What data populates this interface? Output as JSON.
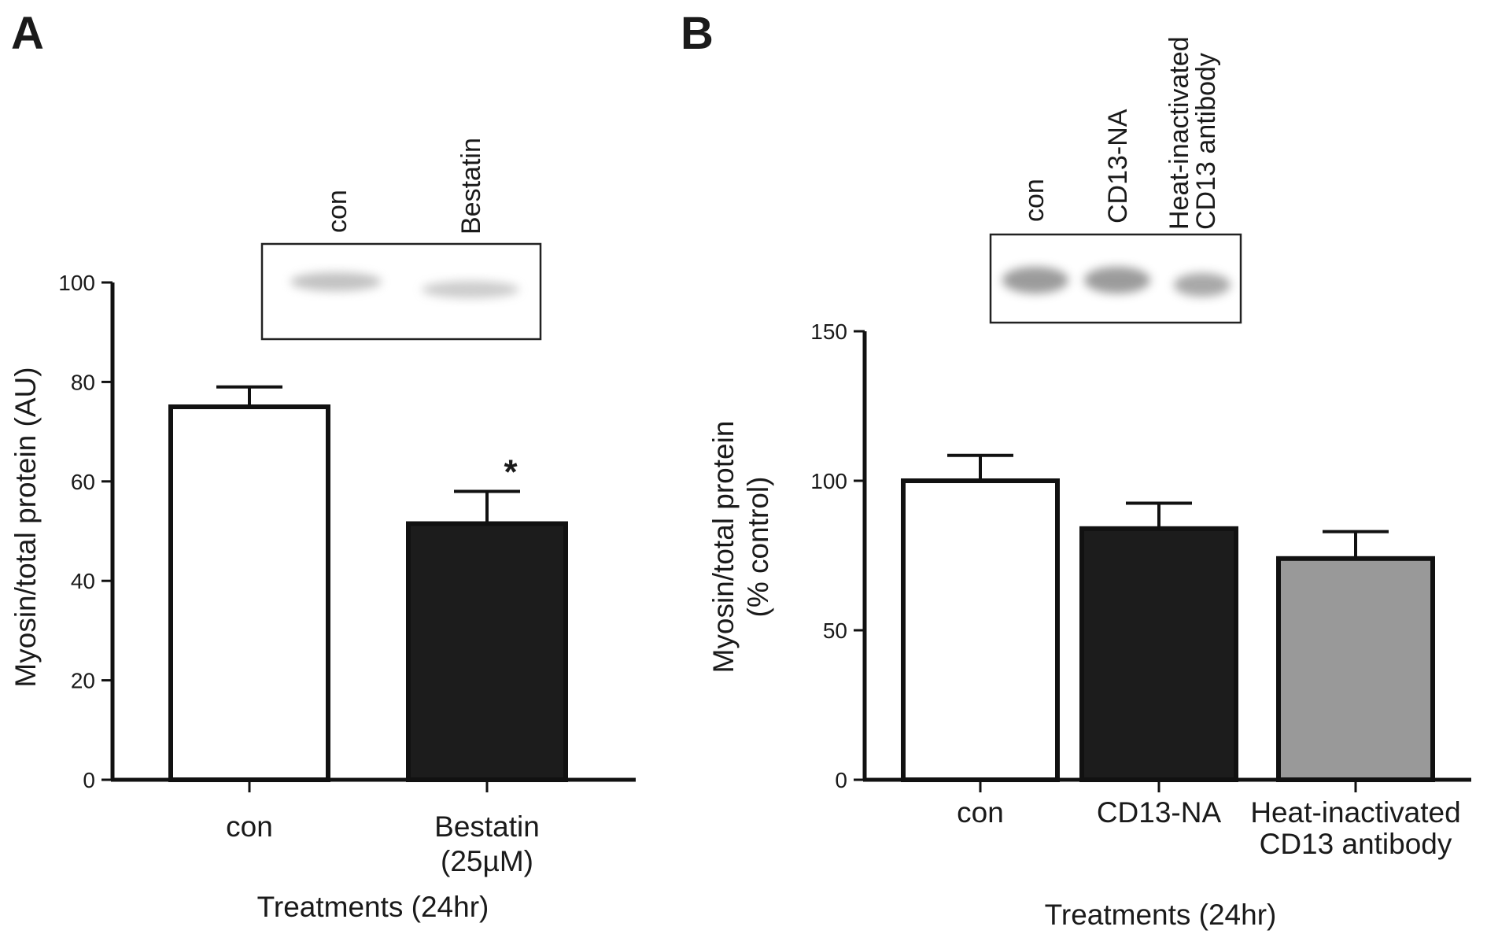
{
  "chart_data": [
    {
      "panel": "A",
      "type": "bar",
      "categories": [
        "con",
        "Bestatin\n(25µM)"
      ],
      "values": [
        75,
        51.5
      ],
      "errors": [
        4,
        6.5
      ],
      "bar_colors": [
        "#ffffff",
        "#1c1c1c"
      ],
      "significance": [
        "",
        "*"
      ],
      "ylabel": "Myosin/total protein (AU)",
      "xlabel": "Treatments (24hr)",
      "ylim": [
        0,
        100
      ],
      "yticks": [
        0,
        20,
        40,
        60,
        80,
        100
      ],
      "blot_lanes": [
        "con",
        "Bestatin"
      ]
    },
    {
      "panel": "B",
      "type": "bar",
      "categories": [
        "con",
        "CD13-NA",
        "Heat-inactivated\nCD13 antibody"
      ],
      "values": [
        100,
        84,
        74
      ],
      "errors": [
        8.5,
        8.5,
        9
      ],
      "bar_colors": [
        "#ffffff",
        "#1c1c1c",
        "#999999"
      ],
      "significance": [
        "",
        "",
        ""
      ],
      "ylabel": "Myosin/total protein\n(% control)",
      "xlabel": "Treatments (24hr)",
      "ylim": [
        0,
        150
      ],
      "yticks": [
        0,
        50,
        100,
        150
      ],
      "blot_lanes": [
        "con",
        "CD13-NA",
        "Heat-inactivated\nCD13 antibody"
      ]
    }
  ]
}
